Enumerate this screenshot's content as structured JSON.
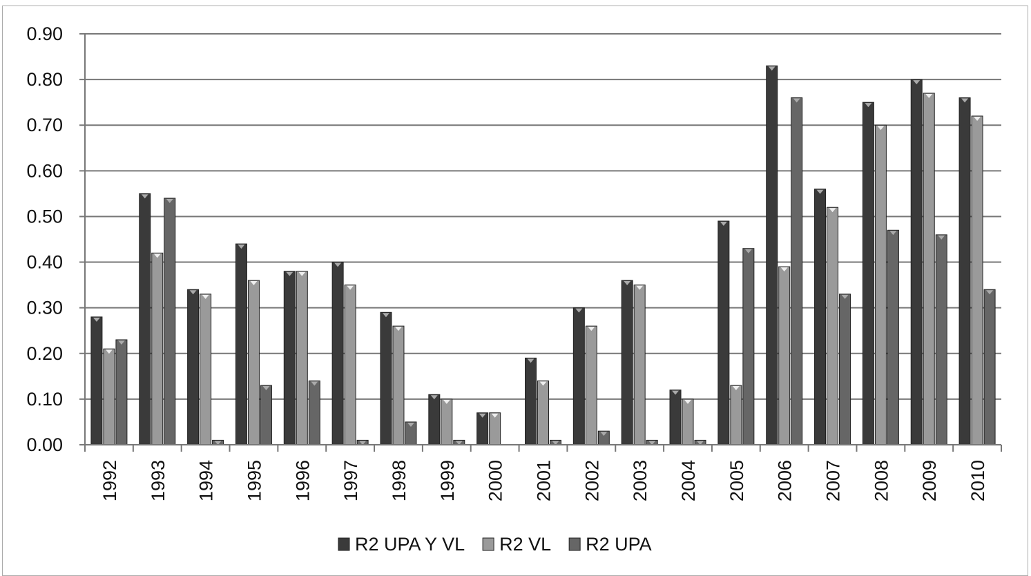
{
  "chart_data": {
    "type": "bar",
    "title": "",
    "xlabel": "",
    "ylabel": "",
    "ylim": [
      0,
      0.9
    ],
    "yticks": [
      "0.00",
      "0.10",
      "0.20",
      "0.30",
      "0.40",
      "0.50",
      "0.60",
      "0.70",
      "0.80",
      "0.90"
    ],
    "grid": true,
    "legend_position": "bottom",
    "categories": [
      "1992",
      "1993",
      "1994",
      "1995",
      "1996",
      "1997",
      "1998",
      "1999",
      "2000",
      "2001",
      "2002",
      "2003",
      "2004",
      "2005",
      "2006",
      "2007",
      "2008",
      "2009",
      "2010"
    ],
    "series": [
      {
        "name": "R2 UPA Y VL",
        "color": "#3a3a3a",
        "values": [
          0.28,
          0.55,
          0.34,
          0.44,
          0.38,
          0.4,
          0.29,
          0.11,
          0.07,
          0.19,
          0.3,
          0.36,
          0.12,
          0.49,
          0.83,
          0.56,
          0.75,
          0.8,
          0.76
        ]
      },
      {
        "name": "R2 VL",
        "color": "#9a9a9a",
        "values": [
          0.21,
          0.42,
          0.33,
          0.36,
          0.38,
          0.35,
          0.26,
          0.1,
          0.07,
          0.14,
          0.26,
          0.35,
          0.1,
          0.13,
          0.39,
          0.52,
          0.7,
          0.77,
          0.72
        ]
      },
      {
        "name": "R2 UPA",
        "color": "#666666",
        "values": [
          0.23,
          0.54,
          0.01,
          0.13,
          0.14,
          0.01,
          0.05,
          0.01,
          0.0,
          0.01,
          0.03,
          0.01,
          0.01,
          0.43,
          0.76,
          0.33,
          0.47,
          0.46,
          0.34
        ]
      }
    ]
  }
}
